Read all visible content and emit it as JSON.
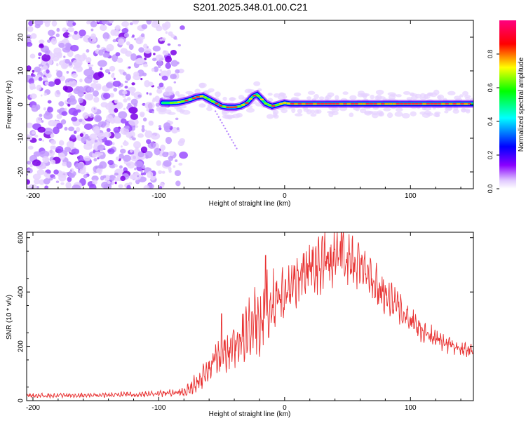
{
  "figure": {
    "title": "S201.2025.348.01.00.C21"
  },
  "chart_data": [
    {
      "type": "heatmap",
      "name": "spectrogram",
      "xlabel": "Height of straight line (km)",
      "ylabel": "Frequency (Hz)",
      "xlim": [
        -205,
        150
      ],
      "ylim": [
        -25,
        25
      ],
      "xticks": [
        -200,
        -100,
        0,
        100
      ],
      "yticks": [
        -20,
        -10,
        0,
        10,
        20
      ],
      "colorbar": {
        "label": "Normalized spectral amplitude",
        "range": [
          0,
          1
        ],
        "ticks": [
          "0.0",
          "0.2",
          "0.4",
          "0.6",
          "0.8"
        ],
        "tick_values": [
          0,
          0.2,
          0.4,
          0.6,
          0.8
        ],
        "colormap": [
          "#ffffff",
          "#e0c8ff",
          "#8a00ff",
          "#0000ff",
          "#00ffff",
          "#00ff00",
          "#ffff00",
          "#ff0000",
          "#ff0080"
        ]
      },
      "noise_region": {
        "x_from": -205,
        "x_to": -78,
        "freq_range": [
          -25,
          25
        ]
      },
      "ridge": {
        "x": [
          -96,
          -90,
          -85,
          -80,
          -75,
          -70,
          -65,
          -60,
          -55,
          -50,
          -45,
          -40,
          -35,
          -30,
          -25,
          -22,
          -18,
          -15,
          -10,
          -5,
          0,
          5,
          10,
          20,
          40,
          60,
          80,
          100,
          120,
          150
        ],
        "freq": [
          0.5,
          0.5,
          0.6,
          1.0,
          1.5,
          2.2,
          2.5,
          1.5,
          0.5,
          -0.5,
          -0.8,
          -0.8,
          -0.5,
          0.5,
          2.5,
          3.0,
          1.5,
          0.3,
          -0.5,
          0.0,
          0.5,
          0.2,
          0.2,
          0.2,
          0.2,
          0.2,
          0.2,
          0.2,
          0.2,
          0.2
        ]
      }
    },
    {
      "type": "line",
      "name": "snr",
      "xlabel": "Height of straight line (km)",
      "ylabel": "SNR (10 * v/v)",
      "xlim": [
        -205,
        150
      ],
      "ylim": [
        0,
        620
      ],
      "xticks": [
        -200,
        -100,
        0,
        100
      ],
      "yticks": [
        0,
        200,
        400,
        600
      ],
      "color": "#e83030",
      "envelope": {
        "x": [
          -205,
          -150,
          -100,
          -85,
          -75,
          -65,
          -55,
          -45,
          -35,
          -25,
          -15,
          -5,
          5,
          15,
          25,
          35,
          45,
          55,
          65,
          75,
          85,
          95,
          105,
          115,
          125,
          135,
          150
        ],
        "mean": [
          18,
          20,
          25,
          30,
          45,
          90,
          150,
          190,
          230,
          280,
          320,
          370,
          420,
          470,
          500,
          520,
          530,
          510,
          470,
          420,
          370,
          320,
          280,
          240,
          215,
          200,
          185
        ],
        "amp": [
          8,
          8,
          10,
          15,
          25,
          40,
          55,
          70,
          85,
          110,
          130,
          100,
          80,
          90,
          100,
          95,
          95,
          90,
          80,
          70,
          60,
          50,
          45,
          40,
          35,
          30,
          25
        ]
      },
      "spikes": [
        {
          "x": -15,
          "y": 535
        },
        {
          "x": -50,
          "y": 320
        },
        {
          "x": 45,
          "y": 620
        },
        {
          "x": 30,
          "y": 605
        }
      ]
    }
  ]
}
